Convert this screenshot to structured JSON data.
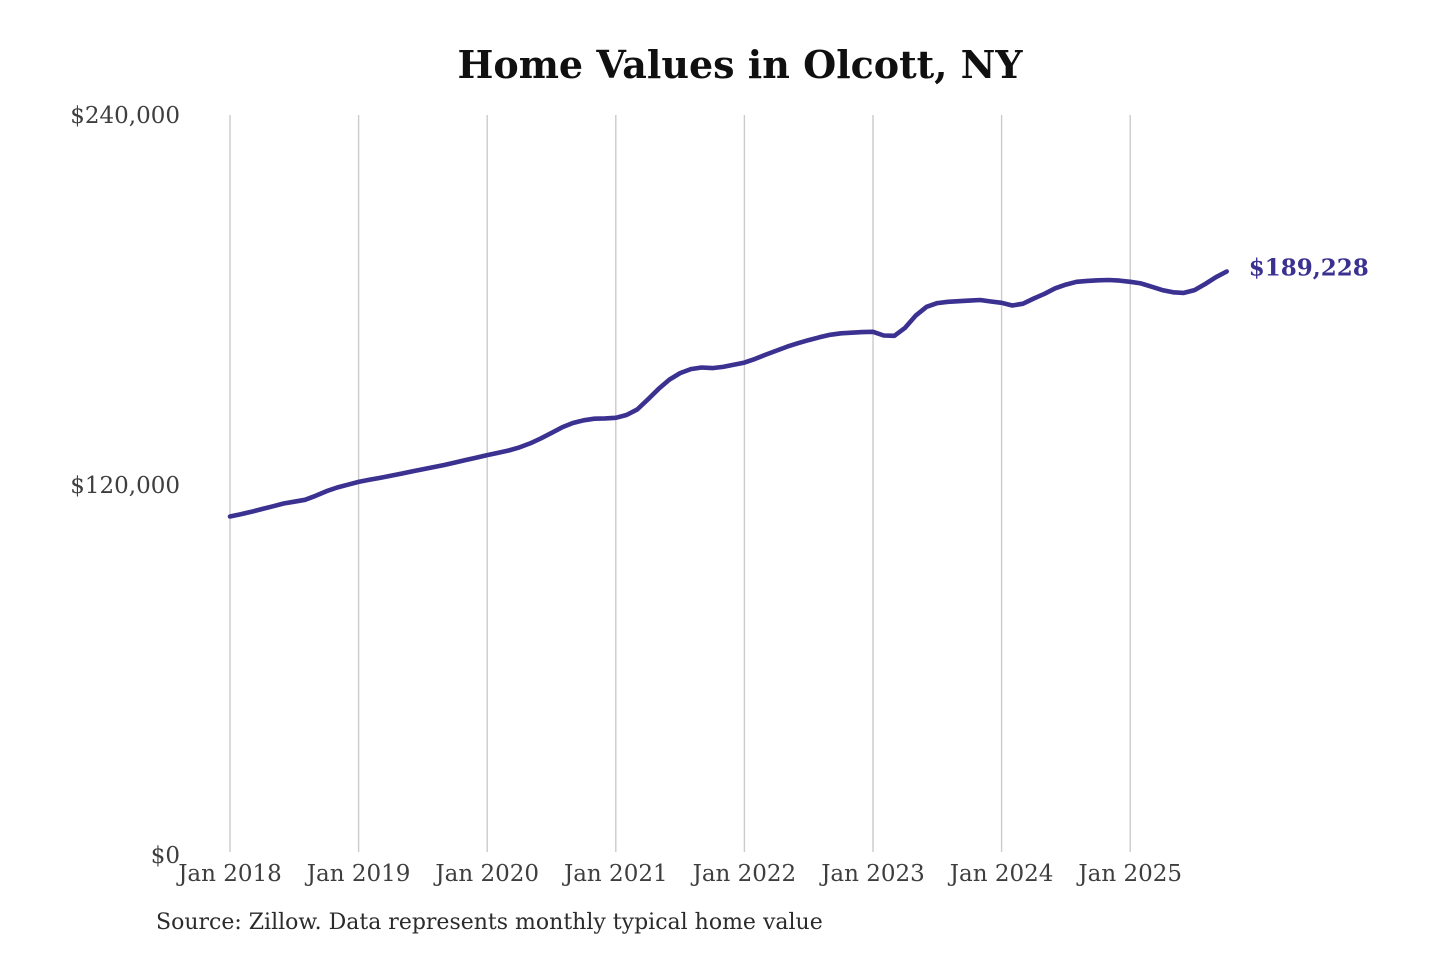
{
  "chart_data": {
    "type": "line",
    "title": "Home Values in Olcott, NY",
    "source": "Source: Zillow. Data represents monthly typical home value",
    "series_name": "Monthly typical home value",
    "end_label": "$189,228",
    "latest_value": 189228,
    "line_color": "#3b3191",
    "grid_color": "#cbcbcb",
    "axis_label_color": "#3e3e3e",
    "ylim": [
      0,
      240000
    ],
    "grid": "vertical-only",
    "legend": "none",
    "y_ticks": [
      {
        "value": 0,
        "label": "$0"
      },
      {
        "value": 120000,
        "label": "$120,000"
      },
      {
        "value": 240000,
        "label": "$240,000"
      }
    ],
    "x_ticks": [
      {
        "month": 0,
        "label": "Jan 2018"
      },
      {
        "month": 12,
        "label": "Jan 2019"
      },
      {
        "month": 24,
        "label": "Jan 2020"
      },
      {
        "month": 36,
        "label": "Jan 2021"
      },
      {
        "month": 48,
        "label": "Jan 2022"
      },
      {
        "month": 60,
        "label": "Jan 2023"
      },
      {
        "month": 72,
        "label": "Jan 2024"
      },
      {
        "month": 84,
        "label": "Jan 2025"
      }
    ],
    "dates": [
      "2018-01",
      "2018-02",
      "2018-03",
      "2018-04",
      "2018-05",
      "2018-06",
      "2018-07",
      "2018-08",
      "2018-09",
      "2018-10",
      "2018-11",
      "2018-12",
      "2019-01",
      "2019-02",
      "2019-03",
      "2019-04",
      "2019-05",
      "2019-06",
      "2019-07",
      "2019-08",
      "2019-09",
      "2019-10",
      "2019-11",
      "2019-12",
      "2020-01",
      "2020-02",
      "2020-03",
      "2020-04",
      "2020-05",
      "2020-06",
      "2020-07",
      "2020-08",
      "2020-09",
      "2020-10",
      "2020-11",
      "2020-12",
      "2021-01",
      "2021-02",
      "2021-03",
      "2021-04",
      "2021-05",
      "2021-06",
      "2021-07",
      "2021-08",
      "2021-09",
      "2021-10",
      "2021-11",
      "2021-12",
      "2022-01",
      "2022-02",
      "2022-03",
      "2022-04",
      "2022-05",
      "2022-06",
      "2022-07",
      "2022-08",
      "2022-09",
      "2022-10",
      "2022-11",
      "2022-12",
      "2023-01",
      "2023-02",
      "2023-03",
      "2023-04",
      "2023-05",
      "2023-06",
      "2023-07",
      "2023-08",
      "2023-09",
      "2023-10",
      "2023-11",
      "2023-12",
      "2024-01",
      "2024-02",
      "2024-03",
      "2024-04",
      "2024-05",
      "2024-06",
      "2024-07",
      "2024-08",
      "2024-09",
      "2024-10",
      "2024-11",
      "2024-12",
      "2025-01",
      "2025-02",
      "2025-03",
      "2025-04",
      "2025-05",
      "2025-06",
      "2025-07",
      "2025-08",
      "2025-09",
      "2025-10"
    ],
    "values": [
      109800,
      110500,
      111300,
      112200,
      113100,
      114000,
      114600,
      115200,
      116500,
      118000,
      119200,
      120100,
      121000,
      121700,
      122300,
      123000,
      123700,
      124400,
      125100,
      125800,
      126500,
      127300,
      128100,
      128900,
      129700,
      130400,
      131200,
      132200,
      133500,
      135100,
      136900,
      138700,
      140100,
      141000,
      141500,
      141600,
      141800,
      142700,
      144500,
      147800,
      151200,
      154200,
      156300,
      157600,
      158100,
      157900,
      158300,
      159000,
      159700,
      160900,
      162300,
      163600,
      164900,
      166000,
      167000,
      167900,
      168700,
      169200,
      169400,
      169600,
      169700,
      168500,
      168400,
      171000,
      175000,
      177800,
      179000,
      179400,
      179600,
      179800,
      180000,
      179500,
      179100,
      178200,
      178800,
      180500,
      182000,
      183800,
      185000,
      185900,
      186200,
      186400,
      186500,
      186300,
      185900,
      185400,
      184300,
      183200,
      182500,
      182300,
      183200,
      185200,
      187400,
      189228
    ]
  }
}
